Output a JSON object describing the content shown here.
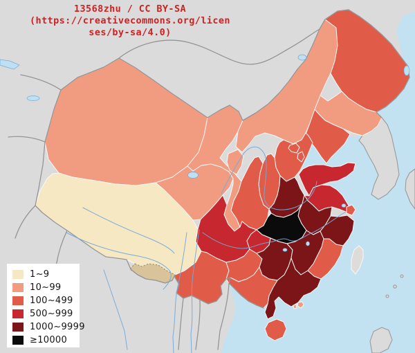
{
  "attribution": {
    "lines": [
      "13568zhu / CC BY-SA",
      "(https://creativecommons.org/licen",
      "ses/by-sa/4.0)"
    ],
    "color": "#CE2222"
  },
  "legend": {
    "items": [
      {
        "label": "1~9",
        "color": "#F7E8C4"
      },
      {
        "label": "10~99",
        "color": "#F19C81"
      },
      {
        "label": "100~499",
        "color": "#E15B49"
      },
      {
        "label": "500~999",
        "color": "#C7272E"
      },
      {
        "label": "1000~9999",
        "color": "#7C1517"
      },
      {
        "label": "≥10000",
        "color": "#0B0B0B"
      }
    ]
  },
  "map": {
    "ocean_color": "#C2E2F2",
    "foreign_land_color": "#DBDBDB",
    "no_data_color": "#DEDCD8",
    "disputed_color": "#D9C39A",
    "country_border_color": "#949494",
    "province_border_color": "#F8F8F8",
    "river_color": "#74A9D8"
  },
  "chart_data": {
    "type": "choropleth",
    "bins": [
      "1~9",
      "10~99",
      "100~499",
      "500~999",
      "1000~9999",
      "≥10000"
    ],
    "regions": [
      {
        "key": "xinjiang",
        "name": "Xinjiang",
        "category": "10~99"
      },
      {
        "key": "tibet",
        "name": "Tibet",
        "category": "1~9"
      },
      {
        "key": "qinghai",
        "name": "Qinghai",
        "category": "10~99"
      },
      {
        "key": "gansu",
        "name": "Gansu",
        "category": "10~99"
      },
      {
        "key": "inner-mongolia",
        "name": "Inner Mongolia",
        "category": "10~99"
      },
      {
        "key": "heilongjiang",
        "name": "Heilongjiang",
        "category": "100~499"
      },
      {
        "key": "jilin",
        "name": "Jilin",
        "category": "10~99"
      },
      {
        "key": "liaoning",
        "name": "Liaoning",
        "category": "100~499"
      },
      {
        "key": "hebei",
        "name": "Hebei",
        "category": "100~499"
      },
      {
        "key": "shanxi",
        "name": "Shanxi",
        "category": "100~499"
      },
      {
        "key": "shaanxi",
        "name": "Shaanxi",
        "category": "100~499"
      },
      {
        "key": "shandong",
        "name": "Shandong",
        "category": "500~999"
      },
      {
        "key": "henan",
        "name": "Henan",
        "category": "1000~9999"
      },
      {
        "key": "jiangsu",
        "name": "Jiangsu",
        "category": "500~999"
      },
      {
        "key": "anhui",
        "name": "Anhui",
        "category": "1000~9999"
      },
      {
        "key": "hubei",
        "name": "Hubei",
        "category": "≥10000"
      },
      {
        "key": "sichuan",
        "name": "Sichuan",
        "category": "500~999"
      },
      {
        "key": "yunnan",
        "name": "Yunnan",
        "category": "100~499"
      },
      {
        "key": "guizhou",
        "name": "Guizhou",
        "category": "100~499"
      },
      {
        "key": "hunan",
        "name": "Hunan",
        "category": "1000~9999"
      },
      {
        "key": "jiangxi",
        "name": "Jiangxi",
        "category": "1000~9999"
      },
      {
        "key": "zhejiang",
        "name": "Zhejiang",
        "category": "1000~9999"
      },
      {
        "key": "fujian",
        "name": "Fujian",
        "category": "100~499"
      },
      {
        "key": "guangdong",
        "name": "Guangdong",
        "category": "1000~9999"
      },
      {
        "key": "guangxi",
        "name": "Guangxi",
        "category": "100~499"
      },
      {
        "key": "hainan",
        "name": "Hainan",
        "category": "100~499"
      },
      {
        "key": "taiwan",
        "name": "Taiwan",
        "category": "no data"
      },
      {
        "key": "ningxia",
        "name": "Ningxia",
        "category": "10~99"
      },
      {
        "key": "beijing",
        "name": "Beijing",
        "category": "100~499"
      },
      {
        "key": "tianjin",
        "name": "Tianjin",
        "category": "100~499"
      },
      {
        "key": "shanghai",
        "name": "Shanghai",
        "category": "100~499"
      },
      {
        "key": "chongqing",
        "name": "Chongqing",
        "category": "500~999"
      },
      {
        "key": "hongkong",
        "name": "Hong Kong",
        "category": "10~99"
      },
      {
        "key": "macau",
        "name": "Macau",
        "category": "10~99"
      }
    ]
  }
}
